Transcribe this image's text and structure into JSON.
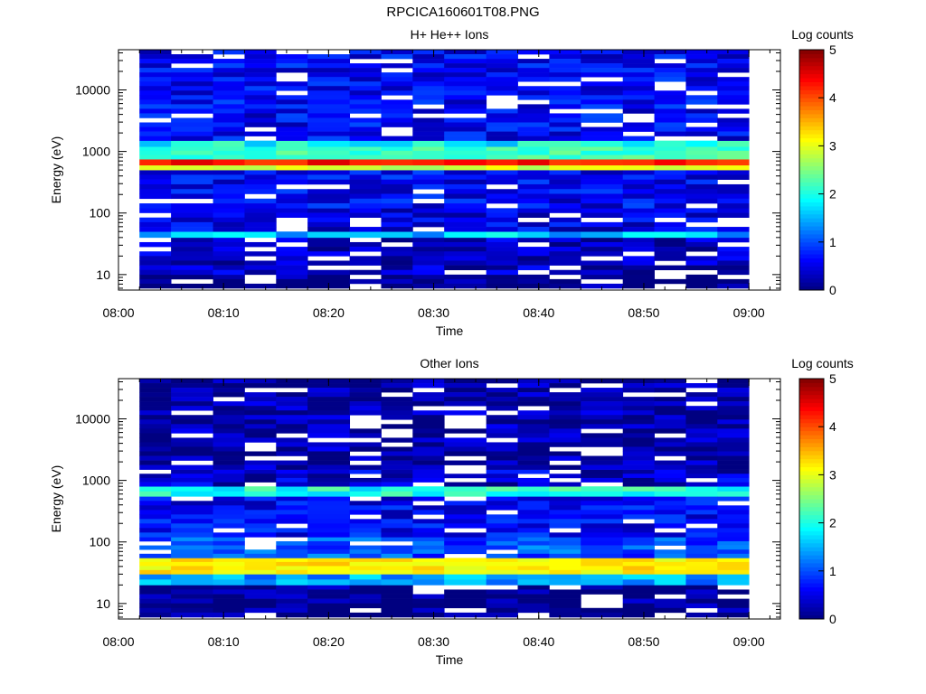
{
  "file_title": "RPCICA160601T08.PNG",
  "chart_data": [
    {
      "type": "heatmap",
      "title": "H+ He++ Ions",
      "xlabel": "Time",
      "ylabel": "Energy (eV)",
      "x_ticks": [
        "08:00",
        "08:10",
        "08:20",
        "08:30",
        "08:40",
        "08:50",
        "09:00"
      ],
      "x_range": [
        "08:00",
        "09:03"
      ],
      "y_scale": "log",
      "y_ticks": [
        10,
        100,
        1000,
        10000
      ],
      "y_range": [
        5.6,
        45000
      ],
      "time_bins": [
        "08:02-08:05",
        "08:05-08:09",
        "08:09-08:12",
        "08:12-08:15",
        "08:15-08:18",
        "08:18-08:22",
        "08:22-08:25",
        "08:25-08:28",
        "08:28-08:31",
        "08:31-08:35",
        "08:35-08:38",
        "08:38-08:41",
        "08:41-08:44",
        "08:44-08:48",
        "08:48-08:51",
        "08:51-08:54",
        "08:54-08:57",
        "08:57-09:00"
      ],
      "energy_bands_eV": [
        {
          "range": [
            6,
            10
          ],
          "log_counts": 0.05
        },
        {
          "range": [
            10,
            40
          ],
          "log_counts": 0.3
        },
        {
          "range": [
            40,
            50
          ],
          "log_counts": 1.6
        },
        {
          "range": [
            50,
            120
          ],
          "log_counts": 0.5
        },
        {
          "range": [
            120,
            500
          ],
          "log_counts": 0.6
        },
        {
          "range": [
            500,
            600
          ],
          "log_counts": 2.9
        },
        {
          "range": [
            600,
            750
          ],
          "log_counts": 4.3
        },
        {
          "range": [
            750,
            1200
          ],
          "log_counts": 2.2
        },
        {
          "range": [
            1200,
            1500
          ],
          "log_counts": 1.9
        },
        {
          "range": [
            1500,
            45000
          ],
          "log_counts": 0.6
        }
      ],
      "colorbar": {
        "label": "Log counts",
        "ticks": [
          0,
          1,
          2,
          3,
          4,
          5
        ],
        "range": [
          0,
          5
        ],
        "colormap": "jet"
      }
    },
    {
      "type": "heatmap",
      "title": "Other Ions",
      "xlabel": "Time",
      "ylabel": "Energy (eV)",
      "x_ticks": [
        "08:00",
        "08:10",
        "08:20",
        "08:30",
        "08:40",
        "08:50",
        "09:00"
      ],
      "x_range": [
        "08:00",
        "09:03"
      ],
      "y_scale": "log",
      "y_ticks": [
        10,
        100,
        1000,
        10000
      ],
      "y_range": [
        5.6,
        45000
      ],
      "time_bins": [
        "08:02-08:05",
        "08:05-08:09",
        "08:09-08:12",
        "08:12-08:15",
        "08:15-08:18",
        "08:18-08:22",
        "08:22-08:25",
        "08:25-08:28",
        "08:28-08:31",
        "08:31-08:35",
        "08:35-08:38",
        "08:38-08:41",
        "08:41-08:44",
        "08:44-08:48",
        "08:48-08:51",
        "08:51-08:54",
        "08:54-08:57",
        "08:57-09:00"
      ],
      "energy_bands_eV": [
        {
          "range": [
            6,
            20
          ],
          "log_counts": 0.05
        },
        {
          "range": [
            20,
            30
          ],
          "log_counts": 1.4
        },
        {
          "range": [
            30,
            55
          ],
          "log_counts": 3.2
        },
        {
          "range": [
            55,
            120
          ],
          "log_counts": 1.0
        },
        {
          "range": [
            120,
            550
          ],
          "log_counts": 0.6
        },
        {
          "range": [
            550,
            800
          ],
          "log_counts": 2.0
        },
        {
          "range": [
            800,
            1500
          ],
          "log_counts": 0.4
        },
        {
          "range": [
            1500,
            45000
          ],
          "log_counts": 0.2
        }
      ],
      "colorbar": {
        "label": "Log counts",
        "ticks": [
          0,
          1,
          2,
          3,
          4,
          5
        ],
        "range": [
          0,
          5
        ],
        "colormap": "jet"
      }
    }
  ]
}
